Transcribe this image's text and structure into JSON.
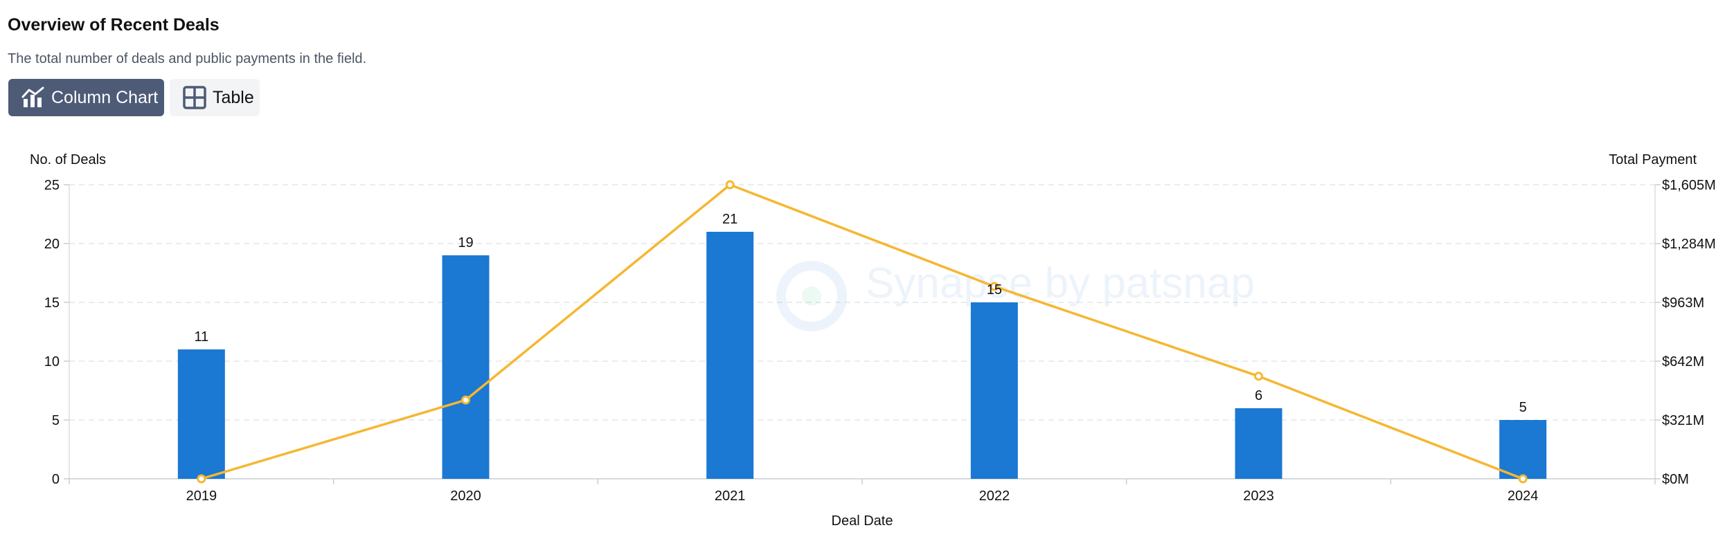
{
  "header": {
    "title": "Overview of Recent Deals",
    "subtitle": "The total number of deals and public payments in the field."
  },
  "toggles": {
    "column_chart": "Column Chart",
    "table": "Table"
  },
  "watermark": "Synapse by patsnap",
  "colors": {
    "bar": "#1b78d3",
    "line": "#f5b731",
    "active_toggle": "#4d5b76",
    "grid": "#e3e6ea"
  },
  "chart_data": {
    "type": "bar",
    "categories": [
      "2019",
      "2020",
      "2021",
      "2022",
      "2023",
      "2024"
    ],
    "series": [
      {
        "name": "No. of Deals",
        "type": "bar",
        "axis": "left",
        "values": [
          11,
          19,
          21,
          15,
          6,
          5
        ],
        "data_labels": true
      },
      {
        "name": "Total Payment",
        "type": "line",
        "axis": "right",
        "values": [
          0,
          430,
          1605,
          1050,
          560,
          0
        ],
        "unit": "$M"
      }
    ],
    "xlabel": "Deal Date",
    "ylabel": "No. of Deals",
    "y2label": "Total Payment",
    "ylim": [
      0,
      25
    ],
    "yticks": [
      "0",
      "5",
      "10",
      "15",
      "20",
      "25"
    ],
    "y2lim": [
      0,
      1605
    ],
    "y2ticks": [
      "$0M",
      "$321M",
      "$642M",
      "$963M",
      "$1,284M",
      "$1,605M"
    ],
    "grid": true
  }
}
